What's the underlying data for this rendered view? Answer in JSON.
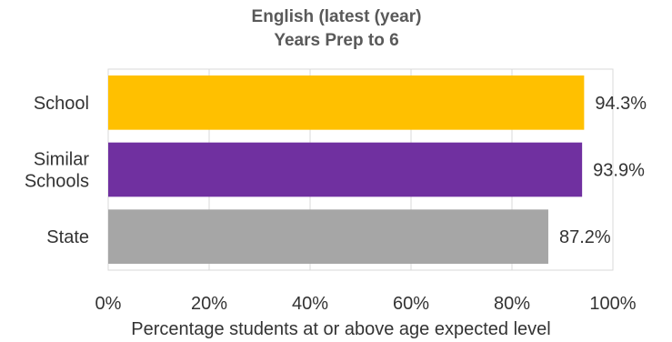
{
  "chart_data": {
    "type": "bar",
    "orientation": "horizontal",
    "title": "English (latest (year)",
    "subtitle": "Years Prep to 6",
    "xlabel": "Percentage students at or above age expected level",
    "ylabel": "",
    "xlim": [
      0,
      100
    ],
    "xticks": [
      "0%",
      "20%",
      "40%",
      "60%",
      "80%",
      "100%"
    ],
    "xtick_values": [
      0,
      20,
      40,
      60,
      80,
      100
    ],
    "categories": [
      {
        "name": "School",
        "lines": [
          "School"
        ]
      },
      {
        "name": "Similar Schools",
        "lines": [
          "Similar",
          "Schools"
        ]
      },
      {
        "name": "State",
        "lines": [
          "State"
        ]
      }
    ],
    "values": [
      94.3,
      93.9,
      87.2
    ],
    "data_labels": [
      "94.3%",
      "93.9%",
      "87.2%"
    ],
    "colors": [
      "#FFC000",
      "#7030A0",
      "#A6A6A6"
    ],
    "grid": true,
    "legend": "none"
  }
}
